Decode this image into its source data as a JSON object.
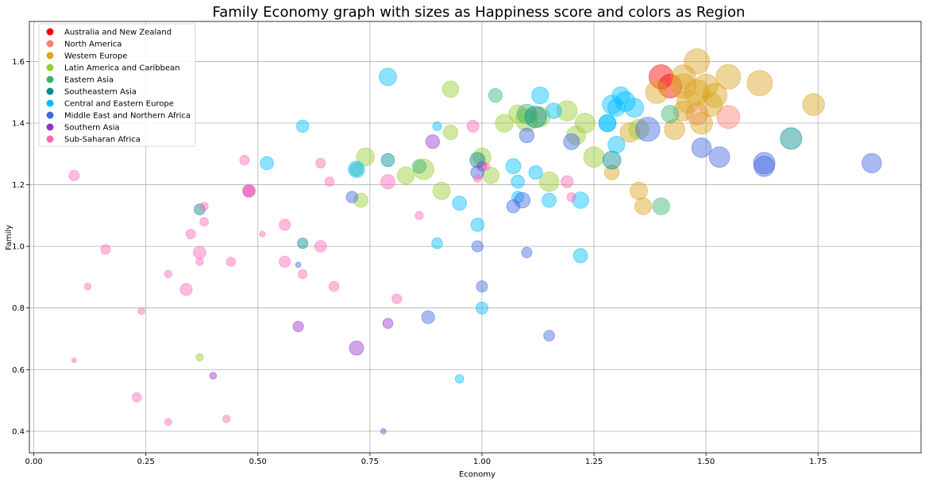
{
  "chart_data": {
    "type": "scatter",
    "title": "Family Economy graph with sizes as Happiness score and colors as Region",
    "xlabel": "Economy",
    "ylabel": "Family",
    "xlim": [
      -0.01,
      1.98
    ],
    "ylim": [
      0.33,
      1.73
    ],
    "xticks": [
      0.0,
      0.25,
      0.5,
      0.75,
      1.0,
      1.25,
      1.5,
      1.75
    ],
    "xtick_labels": [
      "0.00",
      "0.25",
      "0.50",
      "0.75",
      "1.00",
      "1.25",
      "1.50",
      "1.75"
    ],
    "yticks": [
      0.4,
      0.6,
      0.8,
      1.0,
      1.2,
      1.4,
      1.6
    ],
    "ytick_labels": [
      "0.4",
      "0.6",
      "0.8",
      "1.0",
      "1.2",
      "1.4",
      "1.6"
    ],
    "grid": true,
    "legend_position": "top-left",
    "series": [
      {
        "name": "Australia and New Zealand",
        "color": "#ff0000",
        "points": [
          [
            1.4,
            1.55,
            7.3
          ],
          [
            1.42,
            1.52,
            7.2
          ]
        ]
      },
      {
        "name": "North America",
        "color": "#fa8072",
        "points": [
          [
            1.55,
            1.42,
            7.1
          ],
          [
            1.48,
            1.43,
            6.9
          ]
        ]
      },
      {
        "name": "Western Europe",
        "color": "#daa520",
        "points": [
          [
            1.48,
            1.6,
            7.5
          ],
          [
            1.62,
            1.53,
            7.5
          ],
          [
            1.55,
            1.55,
            7.4
          ],
          [
            1.48,
            1.5,
            7.5
          ],
          [
            1.45,
            1.55,
            7.3
          ],
          [
            1.51,
            1.46,
            7.2
          ],
          [
            1.74,
            1.46,
            6.9
          ],
          [
            1.49,
            1.4,
            6.9
          ],
          [
            1.46,
            1.47,
            7.1
          ],
          [
            1.43,
            1.38,
            6.6
          ],
          [
            1.35,
            1.18,
            6.0
          ],
          [
            1.36,
            1.13,
            5.9
          ],
          [
            1.29,
            1.24,
            5.4
          ],
          [
            1.33,
            1.37,
            6.4
          ],
          [
            1.5,
            1.52,
            7.3
          ],
          [
            1.39,
            1.5,
            7.0
          ],
          [
            1.45,
            1.44,
            6.5
          ],
          [
            1.52,
            1.49,
            7.3
          ],
          [
            1.45,
            1.52,
            7.4
          ]
        ]
      },
      {
        "name": "Latin America and Caribbean",
        "color": "#9acd32",
        "points": [
          [
            0.74,
            1.29,
            6.1
          ],
          [
            0.87,
            1.25,
            6.6
          ],
          [
            0.83,
            1.23,
            6.0
          ],
          [
            0.91,
            1.18,
            6.0
          ],
          [
            1.0,
            1.29,
            6.1
          ],
          [
            1.02,
            1.23,
            5.8
          ],
          [
            1.15,
            1.21,
            6.4
          ],
          [
            1.25,
            1.29,
            6.6
          ],
          [
            1.1,
            1.41,
            7.0
          ],
          [
            1.19,
            1.44,
            6.6
          ],
          [
            1.23,
            1.4,
            6.5
          ],
          [
            1.05,
            1.4,
            6.1
          ],
          [
            1.13,
            1.42,
            6.5
          ],
          [
            0.93,
            1.37,
            5.4
          ],
          [
            0.93,
            1.51,
            5.8
          ],
          [
            0.73,
            1.15,
            5.3
          ],
          [
            1.35,
            1.38,
            6.5
          ],
          [
            0.37,
            0.64,
            3.6
          ],
          [
            1.21,
            1.36,
            6.3
          ],
          [
            1.08,
            1.43,
            6.1
          ]
        ]
      },
      {
        "name": "Eastern Asia",
        "color": "#3cb371",
        "points": [
          [
            1.4,
            1.13,
            5.9
          ],
          [
            1.1,
            1.43,
            6.4
          ],
          [
            1.42,
            1.43,
            6.0
          ],
          [
            0.86,
            1.26,
            5.2
          ],
          [
            1.03,
            1.49,
            5.2
          ],
          [
            0.72,
            1.25,
            5.0
          ]
        ]
      },
      {
        "name": "Southeastern Asia",
        "color": "#008b8b",
        "points": [
          [
            1.69,
            1.35,
            6.8
          ],
          [
            1.29,
            1.28,
            6.1
          ],
          [
            0.99,
            1.28,
            5.5
          ],
          [
            0.79,
            1.28,
            5.1
          ],
          [
            0.6,
            1.01,
            4.4
          ],
          [
            0.37,
            1.12,
            4.5
          ],
          [
            1.12,
            1.42,
            6.8
          ]
        ]
      },
      {
        "name": "Central and Eastern Europe",
        "color": "#00bfff",
        "points": [
          [
            0.79,
            1.55,
            6.0
          ],
          [
            1.13,
            1.49,
            5.9
          ],
          [
            1.32,
            1.47,
            6.5
          ],
          [
            1.29,
            1.46,
            6.3
          ],
          [
            1.34,
            1.45,
            6.3
          ],
          [
            1.28,
            1.4,
            6.0
          ],
          [
            1.22,
            1.15,
            5.8
          ],
          [
            1.22,
            0.97,
            5.3
          ],
          [
            1.07,
            1.26,
            5.5
          ],
          [
            1.12,
            1.24,
            5.2
          ],
          [
            1.15,
            1.15,
            5.3
          ],
          [
            0.95,
            1.14,
            5.3
          ],
          [
            0.99,
            1.07,
            5.1
          ],
          [
            0.52,
            1.27,
            5.1
          ],
          [
            0.6,
            1.39,
            4.9
          ],
          [
            0.95,
            0.57,
            3.9
          ],
          [
            0.9,
            1.01,
            4.5
          ],
          [
            1.0,
            0.8,
            4.8
          ],
          [
            1.16,
            1.44,
            5.6
          ],
          [
            0.72,
            1.25,
            5.8
          ],
          [
            0.9,
            1.39,
            4.0
          ],
          [
            1.08,
            1.21,
            5.1
          ],
          [
            1.3,
            1.33,
            5.9
          ],
          [
            1.28,
            1.4,
            5.9
          ],
          [
            1.08,
            1.16,
            4.8
          ],
          [
            1.3,
            1.45,
            6.0
          ],
          [
            1.31,
            1.49,
            6.0
          ]
        ]
      },
      {
        "name": "Middle East and Northern Africa",
        "color": "#4169e1",
        "points": [
          [
            1.87,
            1.27,
            6.4
          ],
          [
            1.63,
            1.26,
            6.6
          ],
          [
            1.63,
            1.27,
            6.8
          ],
          [
            1.53,
            1.29,
            6.6
          ],
          [
            1.49,
            1.32,
            6.4
          ],
          [
            1.37,
            1.38,
            7.3
          ],
          [
            1.2,
            1.34,
            5.7
          ],
          [
            1.1,
            1.36,
            5.4
          ],
          [
            1.09,
            1.15,
            5.6
          ],
          [
            1.07,
            1.13,
            5.1
          ],
          [
            0.99,
            1.24,
            5.1
          ],
          [
            0.71,
            1.16,
            4.7
          ],
          [
            0.88,
            0.77,
            5.0
          ],
          [
            1.0,
            0.87,
            4.6
          ],
          [
            1.1,
            0.98,
            4.4
          ],
          [
            1.15,
            0.71,
            4.5
          ],
          [
            0.99,
            1.0,
            4.6
          ],
          [
            0.78,
            0.4,
            3.0
          ],
          [
            0.59,
            0.94,
            3.0
          ]
        ]
      },
      {
        "name": "Southern Asia",
        "color": "#9932cc",
        "points": [
          [
            0.89,
            1.34,
            5.2
          ],
          [
            0.72,
            0.67,
            5.3
          ],
          [
            0.59,
            0.74,
            4.4
          ],
          [
            0.79,
            0.75,
            4.3
          ],
          [
            0.4,
            0.58,
            3.4
          ],
          [
            0.48,
            1.18,
            4.7
          ],
          [
            1.0,
            1.26,
            4.2
          ]
        ]
      },
      {
        "name": "Sub-Saharan Africa",
        "color": "#ff69b4",
        "points": [
          [
            0.09,
            1.23,
            4.4
          ],
          [
            0.16,
            0.99,
            4.2
          ],
          [
            0.12,
            0.87,
            3.4
          ],
          [
            0.09,
            0.63,
            2.8
          ],
          [
            0.23,
            0.51,
            4.1
          ],
          [
            0.24,
            0.79,
            3.4
          ],
          [
            0.3,
            0.43,
            3.5
          ],
          [
            0.3,
            0.91,
            3.6
          ],
          [
            0.34,
            0.86,
            4.8
          ],
          [
            0.35,
            1.04,
            4.2
          ],
          [
            0.37,
            0.98,
            4.9
          ],
          [
            0.37,
            0.95,
            3.6
          ],
          [
            0.38,
            1.08,
            3.9
          ],
          [
            0.38,
            1.13,
            3.8
          ],
          [
            0.43,
            0.44,
            3.6
          ],
          [
            0.44,
            0.95,
            4.0
          ],
          [
            0.47,
            1.28,
            4.2
          ],
          [
            0.48,
            1.18,
            5.0
          ],
          [
            0.48,
            1.18,
            4.1
          ],
          [
            0.51,
            1.04,
            3.1
          ],
          [
            0.56,
            1.07,
            4.6
          ],
          [
            0.56,
            0.95,
            4.6
          ],
          [
            0.6,
            0.91,
            4.0
          ],
          [
            0.64,
            1.27,
            4.2
          ],
          [
            0.66,
            1.21,
            4.1
          ],
          [
            0.64,
            1.0,
            4.7
          ],
          [
            0.67,
            0.87,
            4.3
          ],
          [
            0.79,
            1.21,
            5.3
          ],
          [
            0.81,
            0.83,
            4.2
          ],
          [
            0.86,
            1.1,
            3.8
          ],
          [
            0.98,
            1.39,
            4.8
          ],
          [
            1.19,
            1.21,
            4.8
          ],
          [
            1.2,
            1.16,
            4.0
          ],
          [
            1.01,
            1.26,
            3.5
          ],
          [
            0.99,
            1.22,
            3.6
          ]
        ]
      }
    ]
  }
}
